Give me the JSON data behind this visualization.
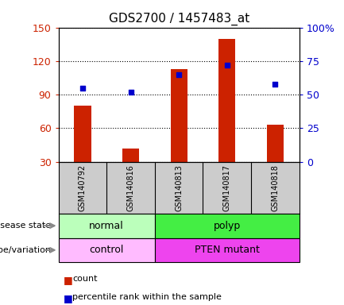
{
  "title": "GDS2700 / 1457483_at",
  "samples": [
    "GSM140792",
    "GSM140816",
    "GSM140813",
    "GSM140817",
    "GSM140818"
  ],
  "counts": [
    80,
    42,
    113,
    140,
    63
  ],
  "percentiles": [
    55,
    52,
    65,
    72,
    58
  ],
  "ylim_left": [
    30,
    150
  ],
  "ylim_right": [
    0,
    100
  ],
  "yticks_left": [
    30,
    60,
    90,
    120,
    150
  ],
  "yticks_right": [
    0,
    25,
    50,
    75,
    100
  ],
  "ytick_labels_right": [
    "0",
    "25",
    "50",
    "75",
    "100%"
  ],
  "bar_color": "#cc2200",
  "dot_color": "#0000cc",
  "bar_width": 0.35,
  "disease_state": [
    {
      "label": "normal",
      "samples": [
        0,
        1
      ],
      "color": "#bbffbb"
    },
    {
      "label": "polyp",
      "samples": [
        2,
        3,
        4
      ],
      "color": "#44ee44"
    }
  ],
  "genotype": [
    {
      "label": "control",
      "samples": [
        0,
        1
      ],
      "color": "#ffbbff"
    },
    {
      "label": "PTEN mutant",
      "samples": [
        2,
        3,
        4
      ],
      "color": "#ee44ee"
    }
  ],
  "row_labels": [
    "disease state",
    "genotype/variation"
  ],
  "legend_items": [
    {
      "label": "count",
      "color": "#cc2200"
    },
    {
      "label": "percentile rank within the sample",
      "color": "#0000cc"
    }
  ],
  "bg_color": "#ffffff",
  "plot_bg": "#ffffff",
  "tick_label_color_left": "#cc2200",
  "tick_label_color_right": "#0000cc",
  "xlabels_bg": "#cccccc",
  "xlabels_border": "#888888"
}
